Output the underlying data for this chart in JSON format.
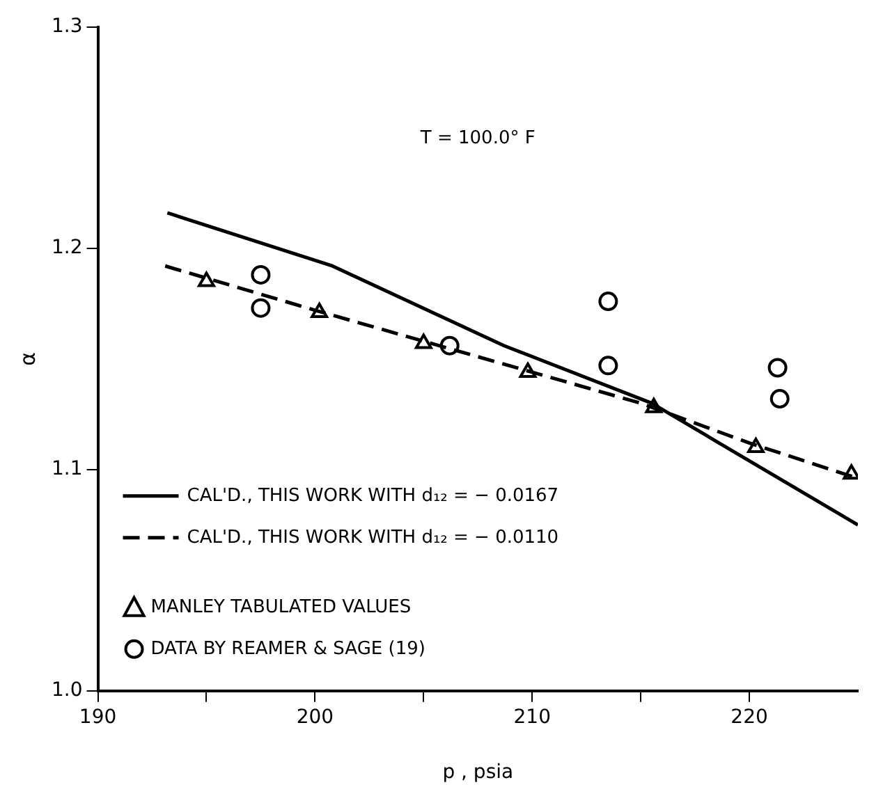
{
  "chart_data": {
    "type": "line",
    "xlabel": "p , psia",
    "ylabel": "α",
    "annotations": [
      "T = 100.0° F"
    ],
    "xlim": [
      190,
      225
    ],
    "xticks": [
      190,
      {
        "value": 195,
        "label": null
      },
      200,
      {
        "value": 205,
        "label": null
      },
      210,
      {
        "value": 215,
        "label": null
      },
      220
    ],
    "ylim": [
      1.0,
      1.3
    ],
    "yticks": [
      {
        "value": 1,
        "label": "1.0"
      },
      1.1,
      1.2,
      1.3
    ],
    "grid": false,
    "legend": "bottom left",
    "series": [
      {
        "name": "CAL'D., THIS WORK WITH d₁₂ = − 0.0167",
        "color": "#000000",
        "line_style": "solid",
        "marker": "none",
        "x": [
          193.2,
          200.8,
          208.7,
          215.5,
          225
        ],
        "values": [
          1.216,
          1.192,
          1.156,
          1.13,
          1.075
        ]
      },
      {
        "name": "CAL'D., THIS WORK WITH d₁₂ = − 0.0110",
        "color": "#000000",
        "line_style": "dashed",
        "marker": "none",
        "x": [
          193.1,
          200,
          205,
          210,
          215,
          220,
          225
        ],
        "values": [
          1.192,
          1.172,
          1.158,
          1.144,
          1.13,
          1.112,
          1.096
        ]
      },
      {
        "name": "MANLEY TABULATED VALUES",
        "type": "scatter",
        "color": "#000000",
        "marker": "triangle",
        "x": [
          195,
          200.2,
          205,
          209.8,
          215.6,
          220.3,
          224.7
        ],
        "values": [
          1.185,
          1.171,
          1.157,
          1.144,
          1.128,
          1.11,
          1.098
        ]
      },
      {
        "name": "DATA BY REAMER & SAGE (19)",
        "type": "scatter",
        "color": "#000000",
        "marker": "circle",
        "x": [
          197.5,
          197.5,
          206.2,
          213.5,
          213.5,
          221.3,
          221.4
        ],
        "values": [
          1.188,
          1.173,
          1.156,
          1.176,
          1.147,
          1.146,
          1.132
        ]
      }
    ]
  }
}
